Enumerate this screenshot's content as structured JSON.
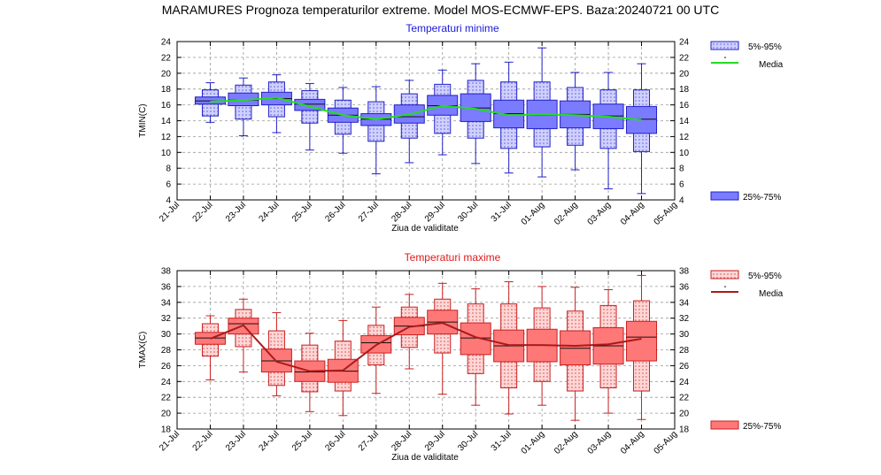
{
  "title": "MARAMURES  Prognoza temperaturilor extreme.  Model MOS-ECMWF-EPS. Baza:20240721 00 UTC",
  "chart_data": [
    {
      "type": "box",
      "title": "Temperaturi minime",
      "xlabel": "Ziua de validitate",
      "ylabel": "TMIN(C)",
      "ylim": [
        4,
        24
      ],
      "yticks": [
        4,
        6,
        8,
        10,
        12,
        14,
        16,
        18,
        20,
        22,
        24
      ],
      "xticks": [
        "21-Jul",
        "22-Jul",
        "23-Jul",
        "24-Jul",
        "25-Jul",
        "26-Jul",
        "27-Jul",
        "28-Jul",
        "29-Jul",
        "30-Jul",
        "31-Jul",
        "01-Aug",
        "02-Aug",
        "03-Aug",
        "04-Aug",
        "05-Aug"
      ],
      "grid": true,
      "colors": {
        "box": "#7b7bff",
        "whisker_box": "#c8c8ff",
        "edge": "#2020c8",
        "mean": "#22dd22",
        "title": "#1a1adc"
      },
      "legend": {
        "p5_95": "5%-95%",
        "mean": "Media",
        "p25_75": "25%-75%"
      },
      "series": [
        {
          "day": "22-Jul",
          "min": 13.8,
          "p5": 14.6,
          "p25": 16.1,
          "median": 16.5,
          "p75": 17.0,
          "p95": 17.9,
          "max": 18.8,
          "mean": 16.4
        },
        {
          "day": "23-Jul",
          "min": 12.1,
          "p5": 14.2,
          "p25": 15.9,
          "median": 16.6,
          "p75": 17.5,
          "p95": 18.5,
          "max": 19.4,
          "mean": 16.6
        },
        {
          "day": "24-Jul",
          "min": 12.5,
          "p5": 14.5,
          "p25": 16.0,
          "median": 16.8,
          "p75": 17.6,
          "p95": 18.9,
          "max": 19.8,
          "mean": 16.9
        },
        {
          "day": "25-Jul",
          "min": 10.3,
          "p5": 13.7,
          "p25": 15.3,
          "median": 16.1,
          "p75": 16.7,
          "p95": 17.8,
          "max": 18.7,
          "mean": 15.8
        },
        {
          "day": "26-Jul",
          "min": 9.9,
          "p5": 12.3,
          "p25": 13.8,
          "median": 14.7,
          "p75": 15.6,
          "p95": 16.6,
          "max": 18.2,
          "mean": 14.7
        },
        {
          "day": "27-Jul",
          "min": 7.3,
          "p5": 11.4,
          "p25": 13.4,
          "median": 14.2,
          "p75": 14.9,
          "p95": 16.4,
          "max": 18.3,
          "mean": 14.2
        },
        {
          "day": "28-Jul",
          "min": 8.7,
          "p5": 11.8,
          "p25": 13.7,
          "median": 14.5,
          "p75": 16.0,
          "p95": 17.4,
          "max": 19.1,
          "mean": 14.8
        },
        {
          "day": "29-Jul",
          "min": 9.7,
          "p5": 12.4,
          "p25": 14.7,
          "median": 15.9,
          "p75": 17.2,
          "p95": 18.6,
          "max": 20.4,
          "mean": 15.9
        },
        {
          "day": "30-Jul",
          "min": 8.6,
          "p5": 11.8,
          "p25": 13.9,
          "median": 15.6,
          "p75": 17.4,
          "p95": 19.1,
          "max": 21.2,
          "mean": 15.5
        },
        {
          "day": "31-Jul",
          "min": 7.4,
          "p5": 10.5,
          "p25": 13.1,
          "median": 14.9,
          "p75": 16.6,
          "p95": 18.9,
          "max": 21.4,
          "mean": 14.7
        },
        {
          "day": "01-Aug",
          "min": 6.9,
          "p5": 10.7,
          "p25": 13.0,
          "median": 14.7,
          "p75": 16.6,
          "p95": 18.9,
          "max": 23.2,
          "mean": 14.8
        },
        {
          "day": "02-Aug",
          "min": 7.8,
          "p5": 10.9,
          "p25": 13.1,
          "median": 14.8,
          "p75": 16.5,
          "p95": 18.2,
          "max": 20.1,
          "mean": 14.7
        },
        {
          "day": "03-Aug",
          "min": 5.4,
          "p5": 10.5,
          "p25": 13.0,
          "median": 14.6,
          "p75": 16.1,
          "p95": 17.9,
          "max": 20.1,
          "mean": 14.5
        },
        {
          "day": "04-Aug",
          "min": 4.8,
          "p5": 10.1,
          "p25": 12.4,
          "median": 14.2,
          "p75": 15.8,
          "p95": 17.9,
          "max": 21.2,
          "mean": 14.1
        }
      ]
    },
    {
      "type": "box",
      "title": "Temperaturi maxime",
      "xlabel": "Ziua de validitate",
      "ylabel": "TMAX(C)",
      "ylim": [
        18,
        38
      ],
      "yticks": [
        18,
        20,
        22,
        24,
        26,
        28,
        30,
        32,
        34,
        36,
        38
      ],
      "xticks": [
        "21-Jul",
        "22-Jul",
        "23-Jul",
        "24-Jul",
        "25-Jul",
        "26-Jul",
        "27-Jul",
        "28-Jul",
        "29-Jul",
        "30-Jul",
        "31-Jul",
        "01-Aug",
        "02-Aug",
        "03-Aug",
        "04-Aug",
        "05-Aug"
      ],
      "grid": true,
      "colors": {
        "box": "#ff7878",
        "whisker_box": "#ffd0d0",
        "edge": "#c82020",
        "mean": "#aa1a1a",
        "title": "#e01a1a"
      },
      "legend": {
        "p5_95": "5%-95%",
        "mean": "Media",
        "p25_75": "25%-75%"
      },
      "series": [
        {
          "day": "22-Jul",
          "min": 24.2,
          "p5": 27.2,
          "p25": 28.7,
          "median": 29.5,
          "p75": 30.2,
          "p95": 31.3,
          "max": 32.3,
          "mean": 29.4
        },
        {
          "day": "23-Jul",
          "min": 25.2,
          "p5": 28.4,
          "p25": 30.0,
          "median": 31.3,
          "p75": 32.0,
          "p95": 33.1,
          "max": 34.4,
          "mean": 31.1
        },
        {
          "day": "24-Jul",
          "min": 22.2,
          "p5": 23.5,
          "p25": 25.2,
          "median": 26.6,
          "p75": 28.1,
          "p95": 30.4,
          "max": 32.7,
          "mean": 26.5
        },
        {
          "day": "25-Jul",
          "min": 20.2,
          "p5": 22.7,
          "p25": 24.0,
          "median": 25.2,
          "p75": 26.6,
          "p95": 28.6,
          "max": 30.1,
          "mean": 25.3
        },
        {
          "day": "26-Jul",
          "min": 19.7,
          "p5": 22.8,
          "p25": 23.9,
          "median": 25.3,
          "p75": 26.8,
          "p95": 29.1,
          "max": 31.7,
          "mean": 25.4
        },
        {
          "day": "27-Jul",
          "min": 22.5,
          "p5": 26.1,
          "p25": 27.6,
          "median": 28.9,
          "p75": 29.8,
          "p95": 31.1,
          "max": 33.4,
          "mean": 28.6
        },
        {
          "day": "28-Jul",
          "min": 25.6,
          "p5": 28.3,
          "p25": 29.9,
          "median": 31.0,
          "p75": 32.1,
          "p95": 33.4,
          "max": 35.0,
          "mean": 30.9
        },
        {
          "day": "29-Jul",
          "min": 22.4,
          "p5": 27.6,
          "p25": 30.0,
          "median": 31.5,
          "p75": 33.0,
          "p95": 34.4,
          "max": 36.4,
          "mean": 31.4
        },
        {
          "day": "30-Jul",
          "min": 21.0,
          "p5": 25.0,
          "p25": 27.4,
          "median": 29.5,
          "p75": 31.4,
          "p95": 33.8,
          "max": 35.7,
          "mean": 29.6
        },
        {
          "day": "31-Jul",
          "min": 19.9,
          "p5": 23.2,
          "p25": 26.5,
          "median": 28.5,
          "p75": 30.5,
          "p95": 33.8,
          "max": 36.6,
          "mean": 28.6
        },
        {
          "day": "01-Aug",
          "min": 21.0,
          "p5": 24.0,
          "p25": 26.5,
          "median": 28.6,
          "p75": 30.6,
          "p95": 33.3,
          "max": 36.0,
          "mean": 28.6
        },
        {
          "day": "02-Aug",
          "min": 19.1,
          "p5": 22.8,
          "p25": 26.1,
          "median": 28.2,
          "p75": 30.4,
          "p95": 32.9,
          "max": 35.9,
          "mean": 28.5
        },
        {
          "day": "03-Aug",
          "min": 20.0,
          "p5": 23.2,
          "p25": 26.2,
          "median": 28.5,
          "p75": 30.8,
          "p95": 33.6,
          "max": 35.6,
          "mean": 28.7
        },
        {
          "day": "04-Aug",
          "min": 19.2,
          "p5": 22.8,
          "p25": 26.6,
          "median": 29.6,
          "p75": 31.6,
          "p95": 34.2,
          "max": 37.4,
          "mean": 29.4
        }
      ]
    }
  ]
}
